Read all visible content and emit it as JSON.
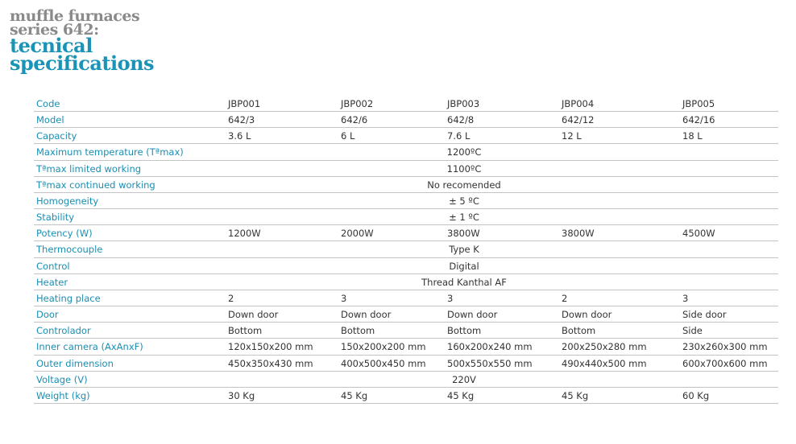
{
  "title": {
    "line1": "muffle furnaces",
    "line2": "series 642:",
    "line3": "tecnical",
    "line4": "specifications"
  },
  "colors": {
    "accent": "#1a93b6",
    "title_grey": "#8a8a8a",
    "rule": "#c4c4c4"
  },
  "rows": [
    {
      "label": "Code",
      "values": [
        "JBP001",
        "JBP002",
        "JBP003",
        "JBP004",
        "JBP005"
      ]
    },
    {
      "label": "Model",
      "values": [
        "642/3",
        "642/6",
        "642/8",
        "642/12",
        "642/16"
      ]
    },
    {
      "label": "Capacity",
      "values": [
        "3.6 L",
        "6 L",
        "7.6 L",
        "12 L",
        "18 L"
      ]
    },
    {
      "label": "Maximum temperature  (Tªmax)",
      "span": "1200ºC"
    },
    {
      "label": "Tªmax limited working",
      "span": "1100ºC"
    },
    {
      "label": "Tªmax continued working",
      "span": "No recomended"
    },
    {
      "label": "Homogeneity",
      "span": "± 5 ºC"
    },
    {
      "label": "Stability",
      "span": "± 1 ºC"
    },
    {
      "label": "Potency  (W)",
      "values": [
        "1200W",
        "2000W",
        "3800W",
        "3800W",
        "4500W"
      ]
    },
    {
      "label": "Thermocouple",
      "span": "Type K"
    },
    {
      "label": "Control",
      "span": "Digital"
    },
    {
      "label": "Heater",
      "span": "Thread Kanthal AF"
    },
    {
      "label": "Heating place",
      "values": [
        "2",
        "3",
        "3",
        "2",
        "3"
      ]
    },
    {
      "label": "Door",
      "values": [
        "Down door",
        "Down door",
        "Down door",
        "Down door",
        "Side door"
      ]
    },
    {
      "label": "Controlador",
      "values": [
        "Bottom",
        "Bottom",
        "Bottom",
        "Bottom",
        "Side"
      ]
    },
    {
      "label": "Inner camera  (AxAnxF)",
      "values": [
        "120x150x200 mm",
        "150x200x200 mm",
        "160x200x240 mm",
        "200x250x280 mm",
        "230x260x300 mm"
      ]
    },
    {
      "label": "Outer dimension",
      "values": [
        "450x350x430 mm",
        "400x500x450 mm",
        "500x550x550 mm",
        "490x440x500 mm",
        "600x700x600 mm"
      ]
    },
    {
      "label": "Voltage (V)",
      "span": "220V"
    },
    {
      "label": "Weight  (kg)",
      "values": [
        "30 Kg",
        "45 Kg",
        "45 Kg",
        "45 Kg",
        "60 Kg"
      ]
    }
  ]
}
